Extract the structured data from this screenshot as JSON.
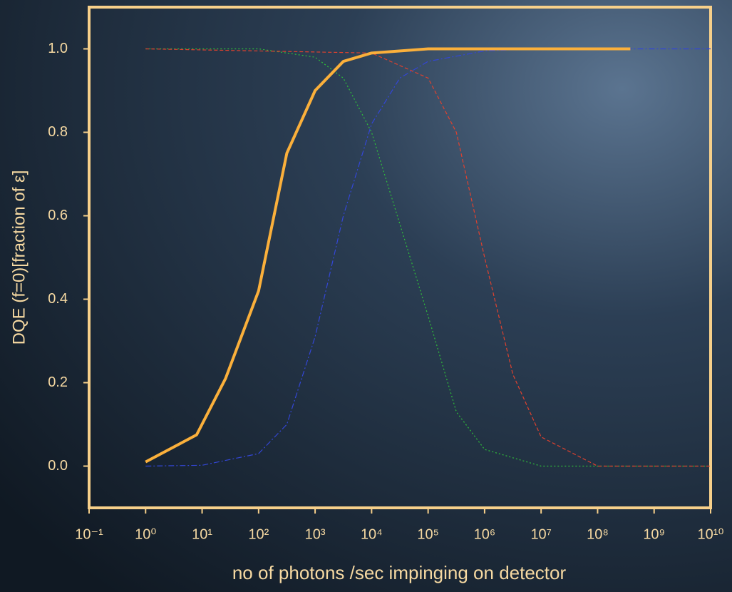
{
  "chart_data": {
    "type": "line",
    "x_label": "no of photons /sec impinging on detector",
    "y_label": "DQE  (f=0)[fraction of ε]",
    "log_x": true,
    "xlim": [
      0.1,
      10000000000
    ],
    "ylim": [
      -0.1,
      1.1
    ],
    "xticks": [
      {
        "value": 0.1,
        "label": "10⁻¹"
      },
      {
        "value": 1,
        "label": "10⁰"
      },
      {
        "value": 10,
        "label": "10¹"
      },
      {
        "value": 100,
        "label": "10²"
      },
      {
        "value": 1000,
        "label": "10³"
      },
      {
        "value": 10000,
        "label": "10⁴"
      },
      {
        "value": 100000,
        "label": "10⁵"
      },
      {
        "value": 1000000,
        "label": "10⁶"
      },
      {
        "value": 10000000,
        "label": "10⁷"
      },
      {
        "value": 100000000,
        "label": "10⁸"
      },
      {
        "value": 1000000000,
        "label": "10⁹"
      },
      {
        "value": 10000000000,
        "label": "10¹⁰"
      }
    ],
    "yticks": [
      {
        "value": 0,
        "label": "0.0"
      },
      0.2,
      0.4,
      0.6,
      0.8,
      {
        "value": 1,
        "label": "1.0"
      }
    ],
    "series": [
      {
        "color": "#3346d6",
        "dash": "8 3 2 3",
        "width": 1.2,
        "x": [
          1,
          10,
          100,
          316,
          1000,
          3162,
          10000,
          31623,
          100000,
          1000000,
          10000000,
          10000000000
        ],
        "values": [
          0.0,
          0.002,
          0.03,
          0.1,
          0.31,
          0.6,
          0.82,
          0.93,
          0.97,
          0.995,
          1.0,
          1.0
        ]
      },
      {
        "color": "#2fbf3a",
        "dash": "2 3",
        "width": 1.2,
        "x": [
          1,
          100,
          1000,
          3162,
          10000,
          31623,
          100000,
          316228,
          1000000,
          10000000,
          10000000000
        ],
        "values": [
          1.0,
          1.0,
          0.98,
          0.93,
          0.8,
          0.58,
          0.36,
          0.13,
          0.04,
          0.0,
          0.0
        ]
      },
      {
        "color": "#e0412e",
        "dash": "5 3",
        "width": 1.2,
        "x": [
          1,
          10000,
          100000,
          316228,
          1000000,
          3162278,
          10000000,
          100000000,
          10000000000
        ],
        "values": [
          1.0,
          0.99,
          0.93,
          0.8,
          0.5,
          0.22,
          0.07,
          0.0,
          0.0
        ]
      },
      {
        "color": "#fbb03b",
        "dash": "",
        "width": 4,
        "x": [
          1,
          8,
          26,
          100,
          316,
          1000,
          3162,
          10000,
          100000,
          1000000,
          380000000
        ],
        "values": [
          0.01,
          0.075,
          0.21,
          0.42,
          0.75,
          0.9,
          0.97,
          0.99,
          1.0,
          1.0,
          1.0
        ]
      }
    ]
  }
}
